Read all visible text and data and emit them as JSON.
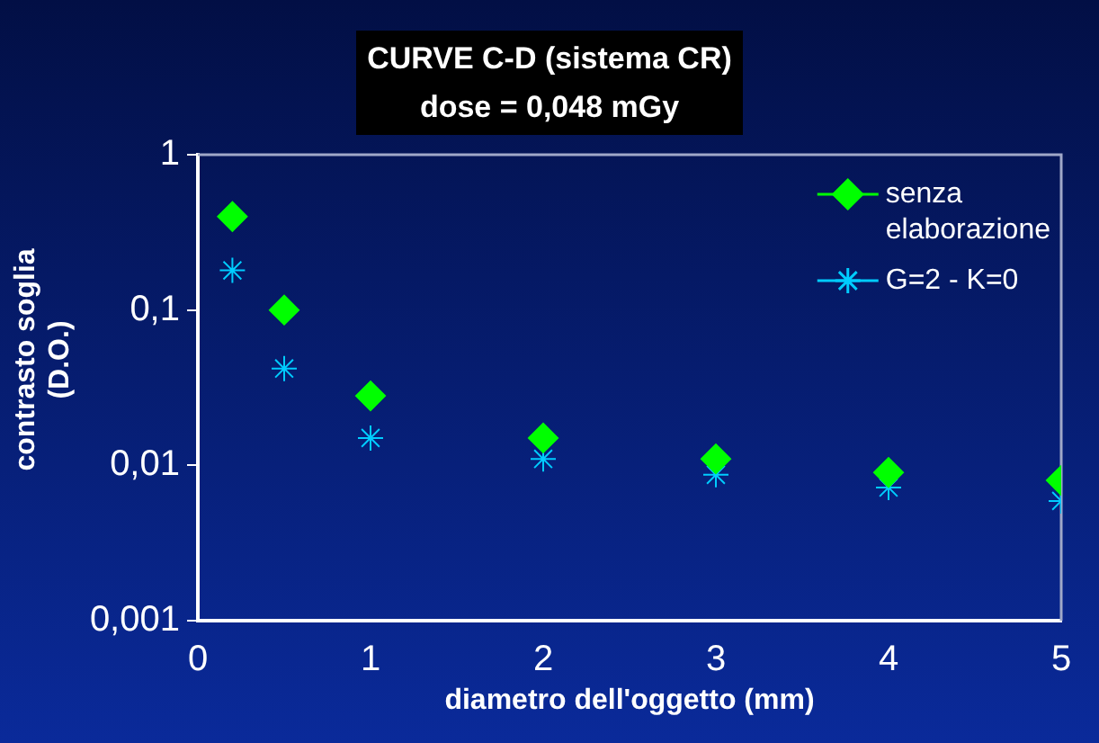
{
  "chart_data": {
    "type": "scatter",
    "title": "CURVE C-D (sistema CR)",
    "subtitle": "dose = 0,048 mGy",
    "xlabel": "diametro dell'oggetto (mm)",
    "ylabel": "contrasto soglia (D.O.)",
    "x": [
      0.2,
      0.5,
      1,
      2,
      3,
      4,
      5
    ],
    "series": [
      {
        "name": "senza elaborazione",
        "color": "#00ff00",
        "marker": "diamond",
        "values": [
          0.4,
          0.1,
          0.028,
          0.015,
          0.011,
          0.009,
          0.008
        ]
      },
      {
        "name": "G=2 - K=0",
        "color": "#00ccff",
        "marker": "cross",
        "values": [
          0.18,
          0.042,
          0.015,
          0.011,
          0.0087,
          0.0072,
          0.0059
        ]
      }
    ],
    "log": "y",
    "xlim": [
      0,
      5
    ],
    "xticks": [
      0,
      1,
      2,
      3,
      4,
      5
    ],
    "ylim": [
      0.001,
      1
    ],
    "yticks": [
      {
        "value": 0.001,
        "label": "0,001"
      },
      {
        "value": 0.01,
        "label": "0,01"
      },
      {
        "value": 0.1,
        "label": "0,1"
      },
      1
    ],
    "grid": false,
    "legend": "top right"
  }
}
